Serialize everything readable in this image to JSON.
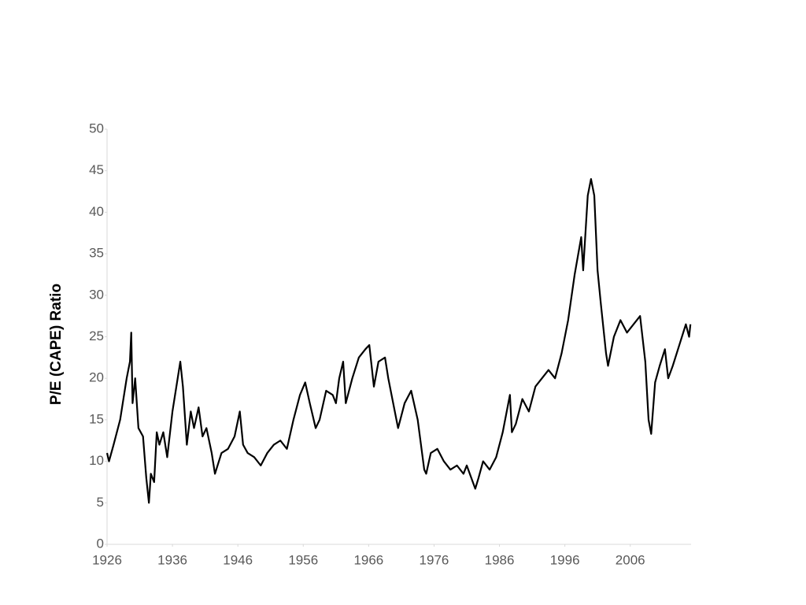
{
  "chart_data": {
    "type": "line",
    "y_label": "P/E (CAPE) Ratio",
    "series": [
      {
        "name": "CAPE",
        "color": "#000000",
        "x": [
          1926,
          1926.3,
          1927,
          1928,
          1929,
          1929.5,
          1929.7,
          1929.9,
          1930.3,
          1930.8,
          1931.5,
          1932,
          1932.4,
          1932.7,
          1933.2,
          1933.6,
          1934,
          1934.6,
          1935.2,
          1936,
          1936.8,
          1937.2,
          1937.6,
          1938.2,
          1938.8,
          1939.3,
          1940,
          1940.6,
          1941.2,
          1942,
          1942.5,
          1943.5,
          1944.5,
          1945.5,
          1946.3,
          1946.8,
          1947.5,
          1948.5,
          1949.5,
          1950.5,
          1951.5,
          1952.5,
          1953.5,
          1954.5,
          1955.5,
          1956.3,
          1957,
          1957.9,
          1958.5,
          1959.5,
          1960.5,
          1961,
          1961.5,
          1962.1,
          1962.5,
          1963.5,
          1964.5,
          1965.5,
          1966.1,
          1966.8,
          1967.5,
          1968.5,
          1969,
          1970,
          1970.5,
          1971.5,
          1972.5,
          1973.5,
          1974.5,
          1974.8,
          1975.5,
          1976.5,
          1977.5,
          1978.5,
          1979.5,
          1980.5,
          1981,
          1982.3,
          1982.8,
          1983.5,
          1984.5,
          1985.5,
          1986.5,
          1987.6,
          1987.9,
          1988.5,
          1989.5,
          1990.5,
          1991.5,
          1992.5,
          1993.5,
          1994.5,
          1995.5,
          1996.5,
          1997.5,
          1998.5,
          1998.8,
          1999.5,
          2000,
          2000.5,
          2001,
          2001.5,
          2002.3,
          2002.6,
          2003.5,
          2004.5,
          2005.5,
          2006.5,
          2007.5,
          2008.3,
          2008.8,
          2009.2,
          2009.8,
          2010.5,
          2011.3,
          2011.8,
          2012.5,
          2013.5,
          2014.5,
          2015,
          2015.2
        ],
        "values": [
          11,
          10,
          12,
          15,
          20,
          22,
          25.5,
          17,
          20,
          14,
          13,
          8,
          5,
          8.5,
          7.5,
          13.5,
          12,
          13.5,
          10.5,
          16,
          20,
          22,
          19,
          12,
          16,
          14,
          16.5,
          13,
          14,
          11,
          8.5,
          11,
          11.5,
          13,
          16,
          12,
          11,
          10.5,
          9.5,
          11,
          12,
          12.5,
          11.5,
          15,
          18,
          19.5,
          17,
          14,
          15,
          18.5,
          18,
          17,
          20,
          22,
          17,
          20,
          22.5,
          23.5,
          24,
          19,
          22,
          22.5,
          20,
          16,
          14,
          17,
          18.5,
          15,
          9,
          8.5,
          11,
          11.5,
          10,
          9,
          9.5,
          8.5,
          9.5,
          6.7,
          8,
          10,
          9,
          10.5,
          13.5,
          18,
          13.5,
          14.5,
          17.5,
          16,
          19,
          20,
          21,
          20,
          23,
          27,
          32.5,
          37,
          33,
          42,
          44,
          42,
          33,
          29,
          23,
          21.5,
          25,
          27,
          25.5,
          26.5,
          27.5,
          22,
          15,
          13.3,
          19.5,
          21.5,
          23.5,
          20,
          21.5,
          24,
          26.5,
          25,
          26.5
        ]
      }
    ],
    "xlim": [
      1926,
      2015.3
    ],
    "xticks": [
      1926,
      1936,
      1946,
      1956,
      1966,
      1976,
      1986,
      1996,
      2006
    ],
    "ylim": [
      0,
      50
    ],
    "yticks": [
      0,
      5,
      10,
      15,
      20,
      25,
      30,
      35,
      40,
      45,
      50
    ],
    "grid": false
  }
}
